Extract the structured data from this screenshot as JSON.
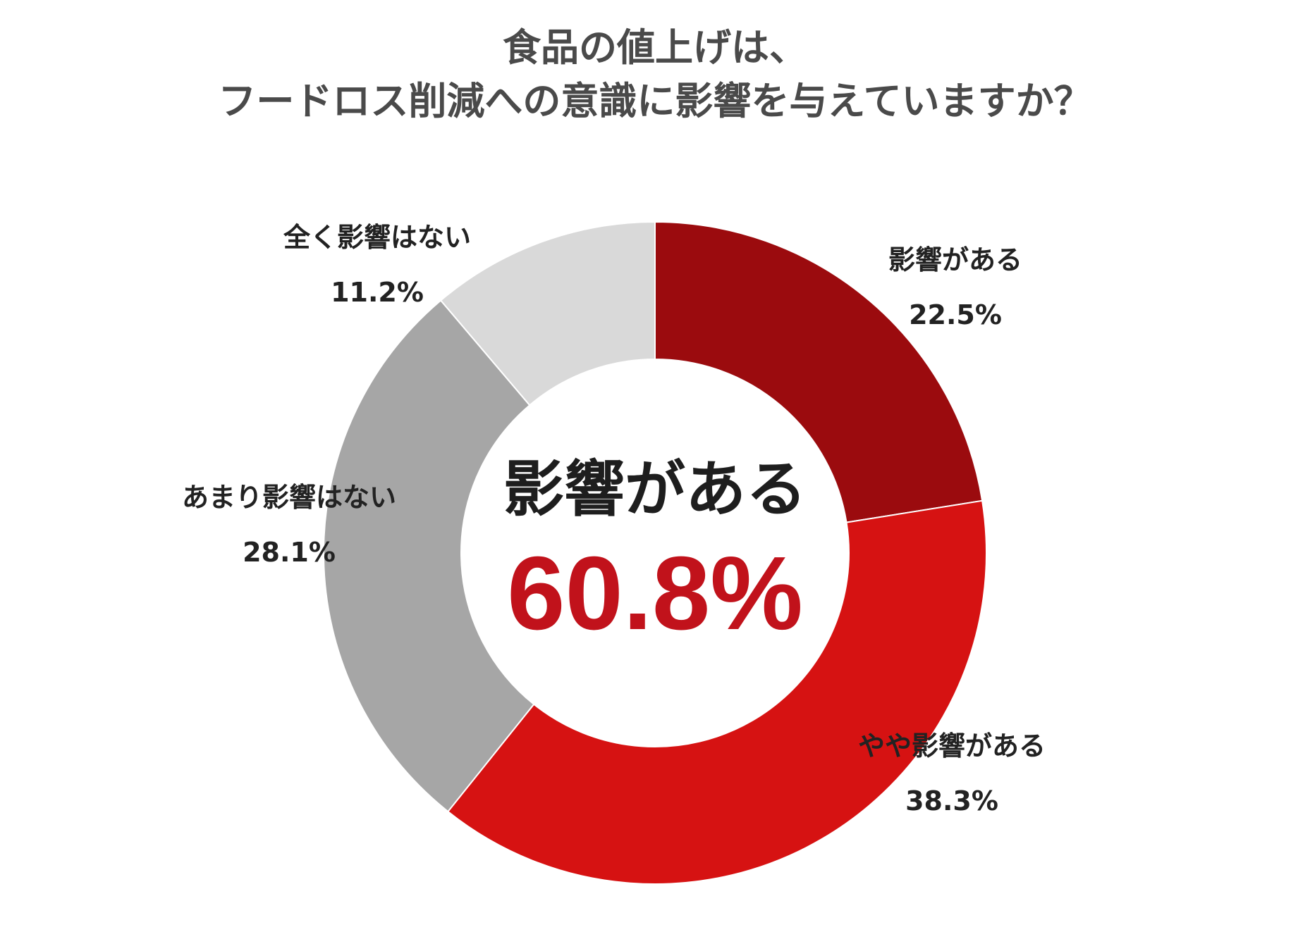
{
  "title": {
    "line1": "食品の値上げは、",
    "line2": "フードロス削減への意識に影響を与えていますか？"
  },
  "center": {
    "caption": "影響がある",
    "value": "60.8%",
    "value_color": "#c1121b"
  },
  "chart_data": {
    "type": "pie",
    "title": "食品の値上げは、フードロス削減への意識に影響を与えていますか？",
    "unit": "%",
    "slices": [
      {
        "label": "影響がある",
        "value": 22.5,
        "value_label": "22.5%",
        "color": "#9b0b0e"
      },
      {
        "label": "やや影響がある",
        "value": 38.3,
        "value_label": "38.3%",
        "color": "#d61212"
      },
      {
        "label": "あまり影響はない",
        "value": 28.1,
        "value_label": "28.1%",
        "color": "#a6a6a6"
      },
      {
        "label": "全く影響はない",
        "value": 11.2,
        "value_label": "11.2%",
        "color": "#d9d9d9"
      }
    ]
  }
}
